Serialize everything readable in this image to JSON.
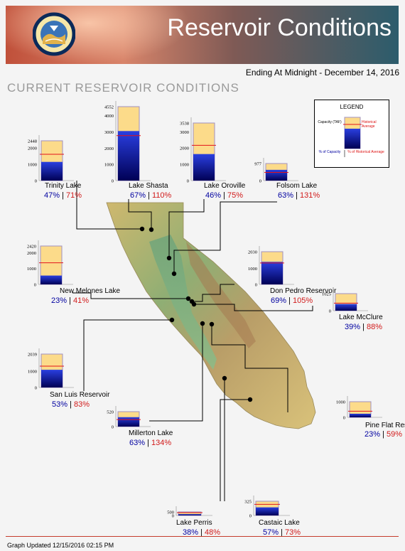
{
  "header": {
    "title": "Reservoir Conditions",
    "ending": "Ending At Midnight - December 14, 2016",
    "subtitle": "CURRENT RESERVOIR CONDITIONS"
  },
  "legend": {
    "title": "LEGEND",
    "capacity_label": "Capacity (TAF)",
    "historical_label": "Historical Average",
    "pct_capacity_label": "% of Capacity",
    "pct_historical_label": "% of Historical Average"
  },
  "footer": "Graph Updated 12/15/2016 02:15 PM",
  "colors": {
    "capacity_fill": "#fcdb8a",
    "storage_top": "#2a3fe0",
    "storage_bottom": "#000055",
    "historical_line": "#e2131b",
    "pct_capacity_text": "#0000a0",
    "pct_historical_text": "#d11a1a"
  },
  "chart_data": {
    "type": "bar",
    "units": "TAF",
    "reservoirs": [
      {
        "name": "Trinity Lake",
        "capacity": 2448,
        "storage": 1150,
        "historical": 1620,
        "pct_capacity": "47%",
        "pct_historical": "71%",
        "ticks": [
          "2448",
          "2000",
          "1000",
          "0"
        ]
      },
      {
        "name": "Lake Shasta",
        "capacity": 4552,
        "storage": 3050,
        "historical": 2770,
        "pct_capacity": "67%",
        "pct_historical": "110%",
        "ticks": [
          "4552",
          "4000",
          "3000",
          "2000",
          "1000",
          "0"
        ]
      },
      {
        "name": "Lake Oroville",
        "capacity": 3538,
        "storage": 1630,
        "historical": 2170,
        "pct_capacity": "46%",
        "pct_historical": "75%",
        "ticks": [
          "3538",
          "3000",
          "2000",
          "1000",
          "0"
        ]
      },
      {
        "name": "Folsom Lake",
        "capacity": 977,
        "storage": 615,
        "historical": 470,
        "pct_capacity": "63%",
        "pct_historical": "131%",
        "ticks": [
          "977",
          "0"
        ]
      },
      {
        "name": "New Melones Lake",
        "capacity": 2420,
        "storage": 557,
        "historical": 1360,
        "pct_capacity": "23%",
        "pct_historical": "41%",
        "ticks": [
          "2420",
          "2000",
          "1000",
          "0"
        ]
      },
      {
        "name": "Don Pedro Reservoir",
        "capacity": 2030,
        "storage": 1400,
        "historical": 1330,
        "pct_capacity": "69%",
        "pct_historical": "105%",
        "ticks": [
          "2030",
          "1000",
          "0"
        ]
      },
      {
        "name": "Lake McClure",
        "capacity": 1025,
        "storage": 400,
        "historical": 455,
        "pct_capacity": "39%",
        "pct_historical": "88%",
        "ticks": [
          "1025",
          "0"
        ]
      },
      {
        "name": "San Luis Reservoir",
        "capacity": 2039,
        "storage": 1080,
        "historical": 1300,
        "pct_capacity": "53%",
        "pct_historical": "83%",
        "ticks": [
          "2039",
          "1000",
          "0"
        ]
      },
      {
        "name": "Millerton Lake",
        "capacity": 520,
        "storage": 328,
        "historical": 245,
        "pct_capacity": "63%",
        "pct_historical": "134%",
        "ticks": [
          "520",
          "0"
        ]
      },
      {
        "name": "Pine Flat Reservoir",
        "capacity": 1000,
        "storage": 230,
        "historical": 390,
        "pct_capacity": "23%",
        "pct_historical": "59%",
        "ticks": [
          "1000",
          "0"
        ]
      },
      {
        "name": "Lake Perris",
        "capacity": 500,
        "storage": 190,
        "historical": 396,
        "pct_capacity": "38%",
        "pct_historical": "48%",
        "ticks": [
          "500",
          "0"
        ]
      },
      {
        "name": "Castaic Lake",
        "capacity": 325,
        "storage": 185,
        "historical": 253,
        "pct_capacity": "57%",
        "pct_historical": "73%",
        "ticks": [
          "325",
          "0"
        ]
      }
    ]
  }
}
